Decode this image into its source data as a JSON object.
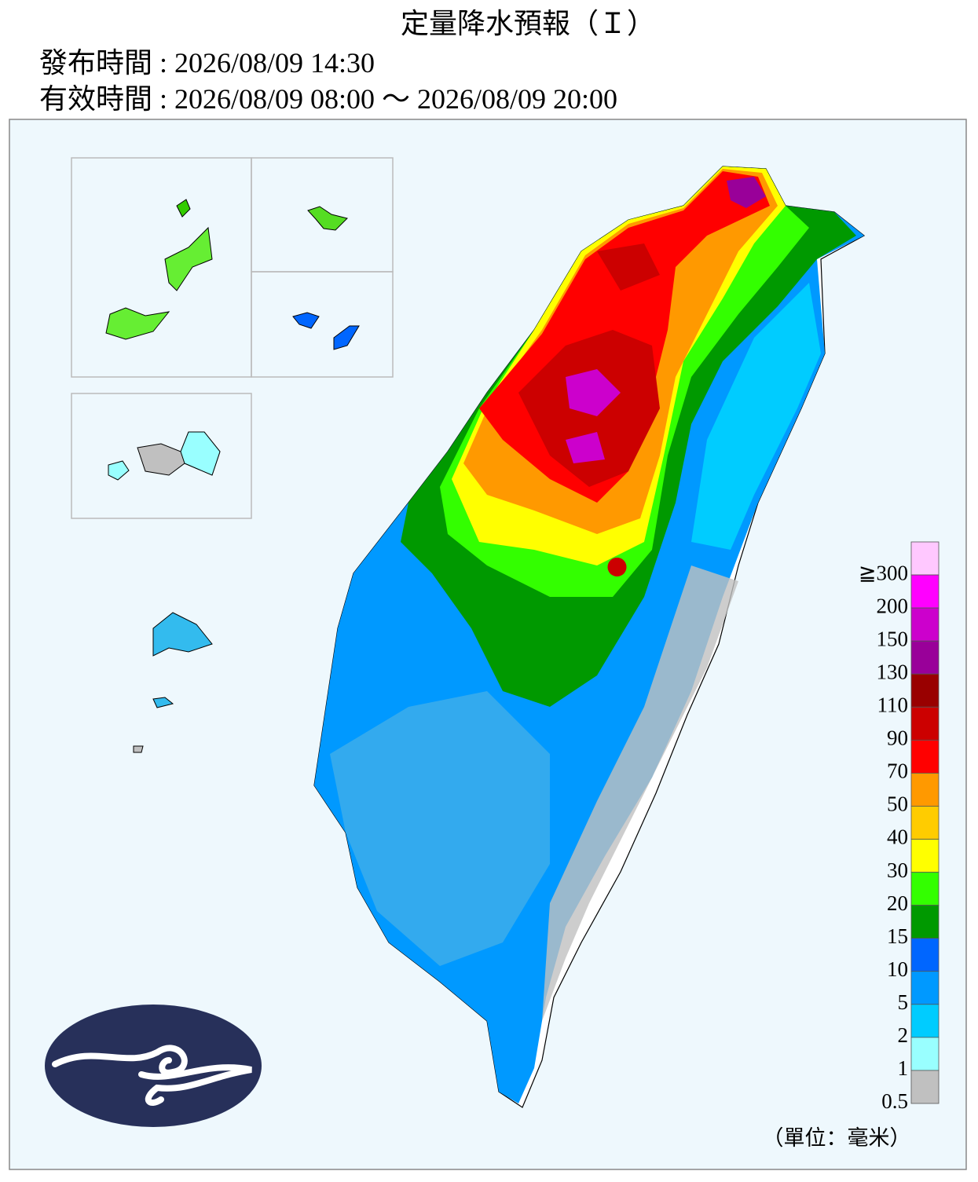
{
  "header": {
    "title": "定量降水預報（Ｉ）",
    "issued": "發布時間 : 2026/08/09 14:30",
    "valid": "有效時間 : 2026/08/09 08:00 ～ 2026/08/09 20:00"
  },
  "legend": {
    "items": [
      {
        "label": "≧300",
        "color": "#ffc8ff"
      },
      {
        "label": "200",
        "color": "#ff00ff"
      },
      {
        "label": "150",
        "color": "#cc00cc"
      },
      {
        "label": "130",
        "color": "#990099"
      },
      {
        "label": "110",
        "color": "#990000"
      },
      {
        "label": "90",
        "color": "#cc0000"
      },
      {
        "label": "70",
        "color": "#ff0000"
      },
      {
        "label": "50",
        "color": "#ff9900"
      },
      {
        "label": "40",
        "color": "#ffcc00"
      },
      {
        "label": "30",
        "color": "#ffff00"
      },
      {
        "label": "20",
        "color": "#33ff00"
      },
      {
        "label": "15",
        "color": "#009900"
      },
      {
        "label": "10",
        "color": "#0066ff"
      },
      {
        "label": "5",
        "color": "#0099ff"
      },
      {
        "label": "2",
        "color": "#00ccff"
      },
      {
        "label": "1",
        "color": "#99ffff"
      },
      {
        "label": "0.5",
        "color": "#c0c0c0"
      }
    ],
    "unit": "（單位：毫米）"
  }
}
